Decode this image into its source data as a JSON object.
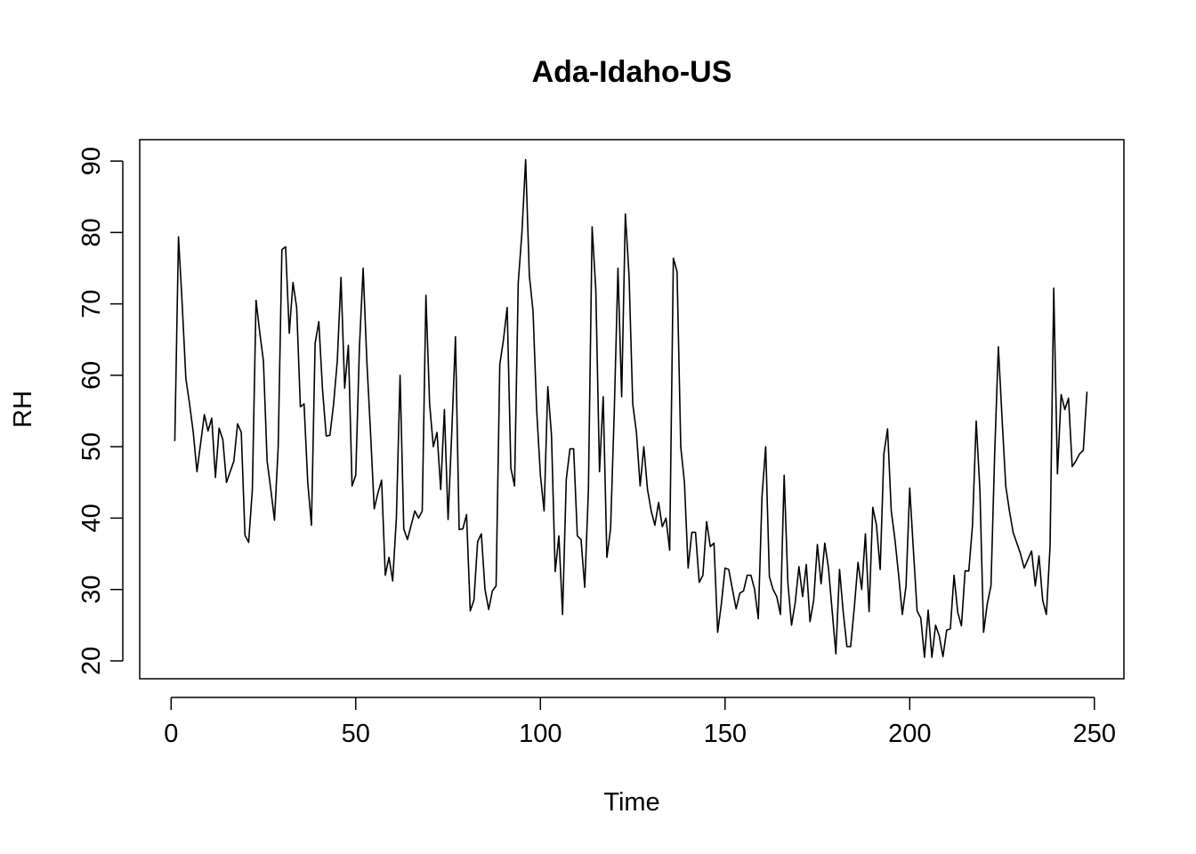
{
  "chart_data": {
    "type": "line",
    "title": "Ada-Idaho-US",
    "xlabel": "Time",
    "ylabel": "RH",
    "xlim": [
      -8.5,
      258
    ],
    "ylim": [
      17.5,
      93
    ],
    "xticks": [
      0,
      50,
      100,
      150,
      200,
      250
    ],
    "yticks": [
      20,
      30,
      40,
      50,
      60,
      70,
      80,
      90
    ],
    "grid": false,
    "series": [
      {
        "name": "RH",
        "color": "#000000",
        "x": [
          1,
          2,
          3,
          4,
          5,
          6,
          7,
          8,
          9,
          10,
          11,
          12,
          13,
          14,
          15,
          16,
          17,
          18,
          19,
          20,
          21,
          22,
          23,
          24,
          25,
          26,
          27,
          28,
          29,
          30,
          31,
          32,
          33,
          34,
          35,
          36,
          37,
          38,
          39,
          40,
          41,
          42,
          43,
          44,
          45,
          46,
          47,
          48,
          49,
          50,
          51,
          52,
          53,
          54,
          55,
          56,
          57,
          58,
          59,
          60,
          61,
          62,
          63,
          64,
          65,
          66,
          67,
          68,
          69,
          70,
          71,
          72,
          73,
          74,
          75,
          76,
          77,
          78,
          79,
          80,
          81,
          82,
          83,
          84,
          85,
          86,
          87,
          88,
          89,
          90,
          91,
          92,
          93,
          94,
          95,
          96,
          97,
          98,
          99,
          100,
          101,
          102,
          103,
          104,
          105,
          106,
          107,
          108,
          109,
          110,
          111,
          112,
          113,
          114,
          115,
          116,
          117,
          118,
          119,
          120,
          121,
          122,
          123,
          124,
          125,
          126,
          127,
          128,
          129,
          130,
          131,
          132,
          133,
          134,
          135,
          136,
          137,
          138,
          139,
          140,
          141,
          142,
          143,
          144,
          145,
          146,
          147,
          148,
          149,
          150,
          151,
          152,
          153,
          154,
          155,
          156,
          157,
          158,
          159,
          160,
          161,
          162,
          163,
          164,
          165,
          166,
          167,
          168,
          169,
          170,
          171,
          172,
          173,
          174,
          175,
          176,
          177,
          178,
          179,
          180,
          181,
          182,
          183,
          184,
          185,
          186,
          187,
          188,
          189,
          190,
          191,
          192,
          193,
          194,
          195,
          196,
          197,
          198,
          199,
          200,
          201,
          202,
          203,
          204,
          205,
          206,
          207,
          208,
          209,
          210,
          211,
          212,
          213,
          214,
          215,
          216,
          217,
          218,
          219,
          220,
          221,
          222,
          223,
          224,
          225,
          226,
          227,
          228,
          229,
          230,
          231,
          232,
          233,
          234,
          235,
          236,
          237,
          238,
          239,
          240,
          241,
          242,
          243,
          244,
          245,
          246,
          247,
          248
        ],
        "values": [
          50.8,
          79.4,
          70,
          59.5,
          56,
          52,
          46.5,
          50.5,
          54.5,
          52.2,
          54,
          45.7,
          52.6,
          51,
          45,
          46.5,
          48,
          53.2,
          52,
          37.6,
          36.6,
          44,
          70.5,
          66,
          62,
          48,
          44,
          39.7,
          50,
          77.6,
          78,
          65.9,
          73,
          69.5,
          55.6,
          56,
          45,
          39,
          64.5,
          67.5,
          58,
          51.5,
          51.6,
          56,
          62,
          73.7,
          58.2,
          64.2,
          44.5,
          46,
          64,
          75,
          62,
          52,
          41.3,
          43.5,
          45.3,
          32,
          34.5,
          31.2,
          40,
          60,
          38.5,
          37,
          39,
          41,
          40,
          41,
          71.2,
          56,
          50,
          52,
          44,
          55.2,
          39.8,
          52,
          65.4,
          38.4,
          38.5,
          40.5,
          27,
          28.5,
          36.7,
          37.8,
          30,
          27.2,
          29.8,
          30.5,
          61.5,
          65,
          69.5,
          47,
          44.5,
          73,
          80,
          90.2,
          74,
          69,
          55,
          46,
          41,
          58.4,
          51.6,
          32.5,
          37.5,
          26.5,
          45.4,
          49.7,
          49.7,
          37.5,
          37,
          30.3,
          44,
          80.8,
          72,
          46.5,
          57,
          34.5,
          38.5,
          55,
          75,
          57,
          82.6,
          74,
          56,
          52,
          44.5,
          50,
          44,
          41,
          39,
          42.2,
          38.8,
          40,
          35.5,
          76.4,
          74.5,
          50,
          45,
          33,
          38,
          38,
          31,
          32,
          39.5,
          36,
          36.5,
          24,
          28,
          33,
          32.8,
          30,
          27.3,
          29.5,
          29.8,
          32,
          32,
          30,
          25.9,
          43,
          50,
          31.8,
          30,
          29,
          26.5,
          46,
          31,
          25,
          28.2,
          33.2,
          29,
          33.5,
          25.5,
          28.5,
          36.3,
          30.8,
          36.5,
          33,
          27,
          21,
          32.8,
          26.8,
          22,
          22,
          27.5,
          33.8,
          30,
          37.8,
          26.9,
          41.5,
          39,
          32.8,
          49,
          52.5,
          41,
          37,
          32,
          26.5,
          30.5,
          44.2,
          35.5,
          27,
          26,
          20.5,
          27.1,
          20.5,
          25,
          23.5,
          20.6,
          24.3,
          24.5,
          32,
          26.8,
          24.9,
          32.6,
          32.6,
          39,
          53.6,
          44,
          24,
          28,
          30.5,
          49,
          64,
          54,
          44.5,
          41,
          38,
          36.5,
          35,
          33,
          34.2,
          35.4,
          30.5,
          34.7,
          28.5,
          26.5,
          36,
          72.2,
          46.2,
          57.3,
          55.2,
          56.8,
          47.2,
          48,
          49,
          49.5,
          57.7
        ]
      }
    ]
  }
}
